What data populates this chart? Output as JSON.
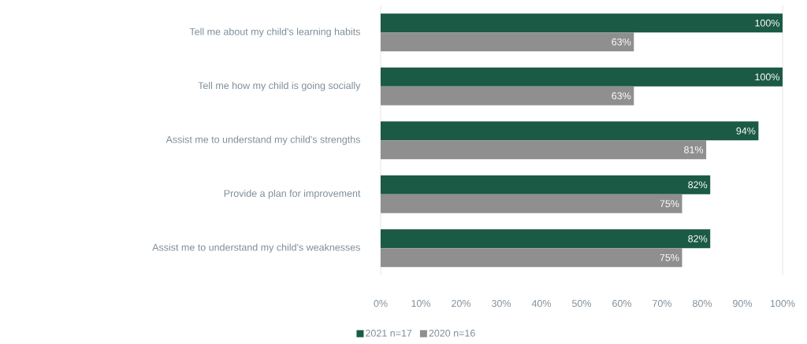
{
  "chart_data": {
    "type": "bar",
    "orientation": "horizontal",
    "categories": [
      "Tell me about my child's learning habits",
      "Tell me how my child is going socially",
      "Assist me to understand my child's strengths",
      "Provide a plan for improvement",
      "Assist me to understand my child's weaknesses"
    ],
    "series": [
      {
        "name": "2021 n=17",
        "color": "#1b5a44",
        "values": [
          100,
          100,
          94,
          82,
          82
        ],
        "value_labels": [
          "100%",
          "100%",
          "94%",
          "82%",
          "82%"
        ]
      },
      {
        "name": "2020 n=16",
        "color": "#8f8f8f",
        "values": [
          63,
          63,
          81,
          75,
          75
        ],
        "value_labels": [
          "63%",
          "63%",
          "81%",
          "75%",
          "75%"
        ]
      }
    ],
    "xlim": [
      0,
      100
    ],
    "xticks": [
      {
        "value": 0,
        "label": "0%"
      },
      {
        "value": 10,
        "label": "10%"
      },
      {
        "value": 20,
        "label": "20%"
      },
      {
        "value": 30,
        "label": "30%"
      },
      {
        "value": 40,
        "label": "40%"
      },
      {
        "value": 50,
        "label": "50%"
      },
      {
        "value": 60,
        "label": "60%"
      },
      {
        "value": 70,
        "label": "70%"
      },
      {
        "value": 80,
        "label": "80%"
      },
      {
        "value": 90,
        "label": "90%"
      },
      {
        "value": 100,
        "label": "100%"
      }
    ],
    "legend": "bottom",
    "grid": false
  }
}
